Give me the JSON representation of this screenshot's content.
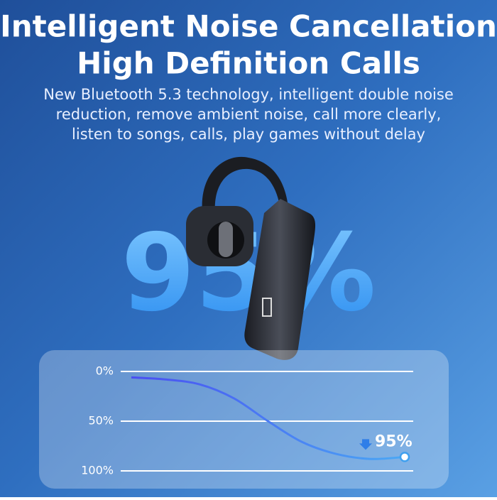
{
  "header": {
    "title_line1": "Intelligent Noise Cancellation",
    "title_line2": "High Definition Calls",
    "subtitle": [
      "New Bluetooth 5.3 technology, intelligent double noise",
      "reduction, remove ambient noise, call more clearly,",
      "listen to songs, calls, play games without delay"
    ]
  },
  "highlight": "95%",
  "chart_data": {
    "type": "line",
    "categories": [
      null,
      null,
      null,
      null,
      null,
      null,
      null,
      null,
      null
    ],
    "values": [
      6,
      8,
      13,
      27,
      50,
      71,
      83,
      88,
      86
    ],
    "color": "#4a63f2",
    "ylim": [
      0,
      100
    ],
    "inverted": true,
    "yticks": [
      {
        "value": 0,
        "label": "0%"
      },
      {
        "value": 50,
        "label": "50%"
      },
      {
        "value": 100,
        "label": "100%"
      }
    ],
    "grid": true,
    "annotation": "95%"
  }
}
